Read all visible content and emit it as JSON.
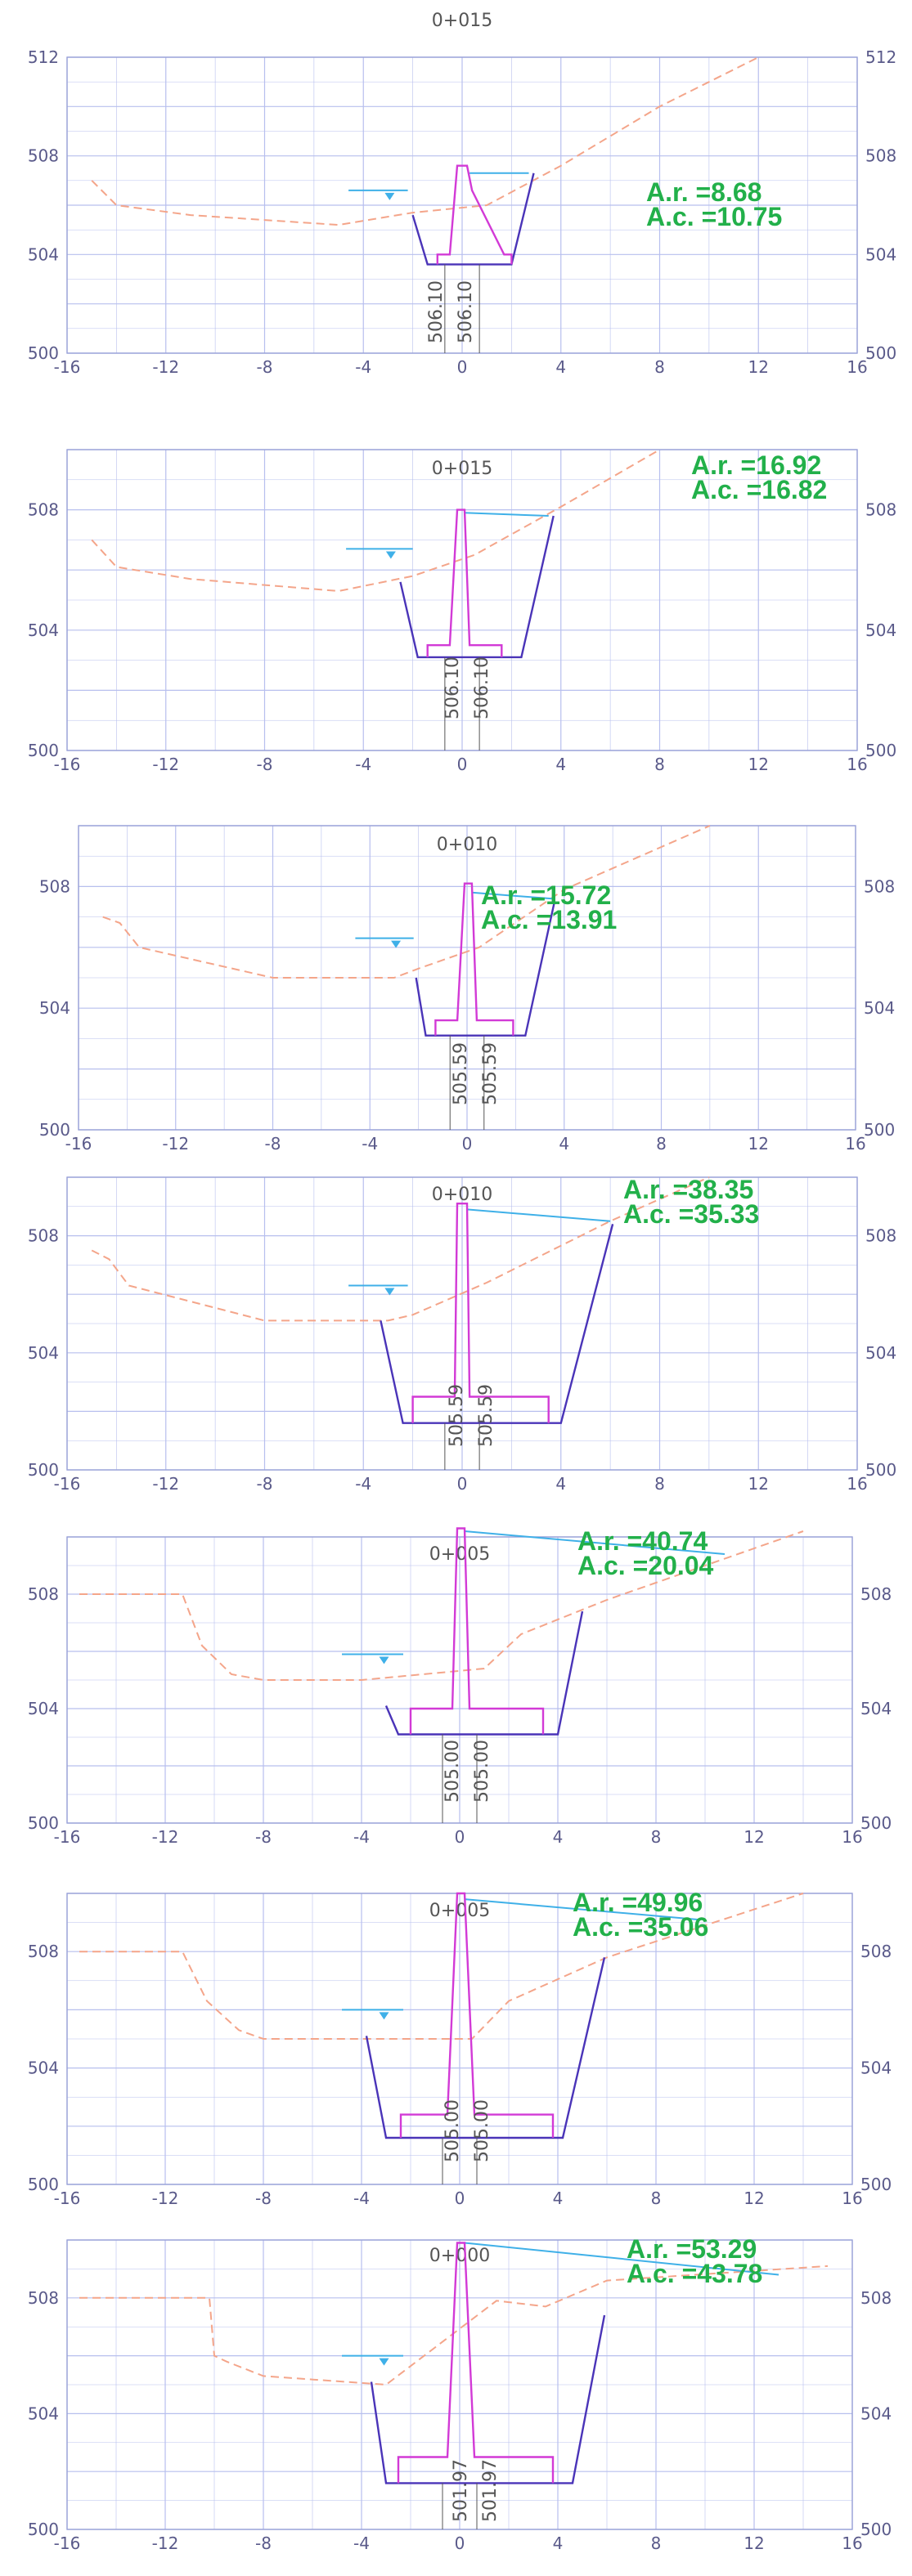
{
  "colors": {
    "grid": "#b7bfee",
    "frame": "#9aa2d8",
    "terrain": "#f4a58a",
    "excavation": "#4a34b8",
    "structure": "#d23ad6",
    "water": "#3fb0e8",
    "area_text": "#22b04a",
    "text": "#555555"
  },
  "chart_data": [
    {
      "type": "cross-section",
      "title": "0+015",
      "area_r_label": "A.r. =8.68",
      "area_c_label": "A.c. =10.75",
      "elev_labels": [
        "506.10",
        "506.10"
      ],
      "xlim": [
        -16,
        16
      ],
      "ylim": [
        500,
        512
      ],
      "x_ticks": [
        -16,
        -12,
        -8,
        -4,
        0,
        4,
        8,
        12,
        16
      ],
      "y_ticks": [
        500,
        504,
        508,
        512
      ],
      "terrain": [
        [
          -15,
          507.0
        ],
        [
          -14,
          506.0
        ],
        [
          -11,
          505.6
        ],
        [
          -8,
          505.4
        ],
        [
          -5,
          505.2
        ],
        [
          -2,
          505.7
        ],
        [
          1,
          506.0
        ],
        [
          4,
          507.6
        ],
        [
          8,
          510.0
        ],
        [
          12,
          512.0
        ]
      ],
      "excavation": [
        [
          -2,
          505.6
        ],
        [
          -1.4,
          503.6
        ],
        [
          2,
          503.6
        ],
        [
          2.9,
          507.3
        ]
      ],
      "structure": [
        [
          -1,
          503.6
        ],
        [
          -1,
          504.0
        ],
        [
          -0.5,
          504.0
        ],
        [
          -0.2,
          507.6
        ],
        [
          0.2,
          507.6
        ],
        [
          0.4,
          506.6
        ],
        [
          1.7,
          504.0
        ],
        [
          2,
          504.0
        ],
        [
          2,
          503.6
        ]
      ],
      "water": [
        [
          -4.6,
          506.6
        ],
        [
          -2.2,
          506.6
        ]
      ],
      "slope_line": [
        [
          0.3,
          507.3
        ],
        [
          2.7,
          507.3
        ]
      ]
    },
    {
      "type": "cross-section",
      "title": "0+015",
      "area_r_label": "A.r. =16.92",
      "area_c_label": "A.c. =16.82",
      "elev_labels": [
        "506.10",
        "506.10"
      ],
      "xlim": [
        -16,
        16
      ],
      "ylim": [
        500,
        510
      ],
      "x_ticks": [
        -16,
        -12,
        -8,
        -4,
        0,
        4,
        8,
        12,
        16
      ],
      "y_ticks": [
        500,
        504,
        508
      ],
      "terrain": [
        [
          -15,
          507.0
        ],
        [
          -14,
          506.1
        ],
        [
          -11,
          505.7
        ],
        [
          -8,
          505.5
        ],
        [
          -5,
          505.3
        ],
        [
          -2,
          505.8
        ],
        [
          0.5,
          506.5
        ],
        [
          4,
          508.1
        ],
        [
          8,
          510.0
        ]
      ],
      "excavation": [
        [
          -2.5,
          505.6
        ],
        [
          -1.8,
          503.1
        ],
        [
          2.4,
          503.1
        ],
        [
          3.7,
          507.8
        ]
      ],
      "structure": [
        [
          -1.4,
          503.1
        ],
        [
          -1.4,
          503.5
        ],
        [
          -0.5,
          503.5
        ],
        [
          -0.2,
          508.0
        ],
        [
          0.1,
          508.0
        ],
        [
          0.3,
          503.5
        ],
        [
          1.6,
          503.5
        ],
        [
          1.6,
          503.1
        ]
      ],
      "water": [
        [
          -4.7,
          506.7
        ],
        [
          -2.0,
          506.7
        ]
      ],
      "slope_line": [
        [
          0.1,
          507.9
        ],
        [
          3.5,
          507.8
        ]
      ]
    },
    {
      "type": "cross-section",
      "title": "0+010",
      "area_r_label": "A.r. =15.72",
      "area_c_label": "A.c. =13.91",
      "elev_labels": [
        "505.59",
        "505.59"
      ],
      "xlim": [
        -16,
        16
      ],
      "ylim": [
        500,
        510
      ],
      "x_ticks": [
        -16,
        -12,
        -8,
        -4,
        0,
        4,
        8,
        12,
        16
      ],
      "y_ticks": [
        500,
        504,
        508
      ],
      "terrain": [
        [
          -15,
          507.0
        ],
        [
          -14.3,
          506.8
        ],
        [
          -13.5,
          506.0
        ],
        [
          -8,
          505.0
        ],
        [
          -3,
          505.0
        ],
        [
          -2,
          505.3
        ],
        [
          0.5,
          506.0
        ],
        [
          4,
          507.9
        ],
        [
          10,
          510.0
        ]
      ],
      "excavation": [
        [
          -2.1,
          505.0
        ],
        [
          -1.7,
          503.1
        ],
        [
          2.4,
          503.1
        ],
        [
          3.6,
          507.5
        ]
      ],
      "structure": [
        [
          -1.3,
          503.1
        ],
        [
          -1.3,
          503.6
        ],
        [
          -0.4,
          503.6
        ],
        [
          -0.1,
          508.1
        ],
        [
          0.2,
          508.1
        ],
        [
          0.4,
          503.6
        ],
        [
          1.9,
          503.6
        ],
        [
          1.9,
          503.1
        ]
      ],
      "water": [
        [
          -4.6,
          506.3
        ],
        [
          -2.2,
          506.3
        ]
      ],
      "slope_line": [
        [
          0.2,
          507.8
        ],
        [
          3.5,
          507.6
        ]
      ]
    },
    {
      "type": "cross-section",
      "title": "0+010",
      "area_r_label": "A.r. =38.35",
      "area_c_label": "A.c. =35.33",
      "elev_labels": [
        "505.59",
        "505.59"
      ],
      "xlim": [
        -16,
        16
      ],
      "ylim": [
        500,
        510
      ],
      "x_ticks": [
        -16,
        -12,
        -8,
        -4,
        0,
        4,
        8,
        12,
        16
      ],
      "y_ticks": [
        500,
        504,
        508
      ],
      "terrain": [
        [
          -15,
          507.5
        ],
        [
          -14.3,
          507.2
        ],
        [
          -13.5,
          506.3
        ],
        [
          -8,
          505.1
        ],
        [
          -3,
          505.1
        ],
        [
          -2,
          505.3
        ],
        [
          1,
          506.4
        ],
        [
          6,
          508.5
        ],
        [
          10,
          510.0
        ]
      ],
      "excavation": [
        [
          -3.3,
          505.1
        ],
        [
          -2.4,
          501.6
        ],
        [
          4.0,
          501.6
        ],
        [
          6.1,
          508.4
        ]
      ],
      "structure": [
        [
          -2.0,
          501.6
        ],
        [
          -2.0,
          502.5
        ],
        [
          -0.3,
          502.5
        ],
        [
          -0.2,
          509.1
        ],
        [
          0.2,
          509.1
        ],
        [
          0.3,
          502.5
        ],
        [
          3.5,
          502.5
        ],
        [
          3.5,
          501.6
        ]
      ],
      "water": [
        [
          -4.6,
          506.3
        ],
        [
          -2.2,
          506.3
        ]
      ],
      "slope_line": [
        [
          0.2,
          508.9
        ],
        [
          6.0,
          508.5
        ]
      ]
    },
    {
      "type": "cross-section",
      "title": "0+005",
      "area_r_label": "A.r. =40.74",
      "area_c_label": "A.c. =20.04",
      "elev_labels": [
        "505.00",
        "505.00"
      ],
      "xlim": [
        -16,
        16
      ],
      "ylim": [
        500,
        510
      ],
      "x_ticks": [
        -16,
        -12,
        -8,
        -4,
        0,
        4,
        8,
        12,
        16
      ],
      "y_ticks": [
        500,
        504,
        508
      ],
      "terrain": [
        [
          -15.5,
          508.0
        ],
        [
          -11.3,
          508.0
        ],
        [
          -10.5,
          506.2
        ],
        [
          -9.3,
          505.2
        ],
        [
          -8,
          505.0
        ],
        [
          -4,
          505.0
        ],
        [
          1,
          505.4
        ],
        [
          2.5,
          506.6
        ],
        [
          6,
          507.8
        ],
        [
          14,
          510.2
        ]
      ],
      "excavation": [
        [
          -3,
          504.1
        ],
        [
          -2.5,
          503.1
        ],
        [
          4.0,
          503.1
        ],
        [
          5.0,
          507.4
        ]
      ],
      "structure": [
        [
          -2.0,
          503.1
        ],
        [
          -2.0,
          504.0
        ],
        [
          -0.3,
          504.0
        ],
        [
          -0.1,
          510.3
        ],
        [
          0.2,
          510.3
        ],
        [
          0.4,
          504.0
        ],
        [
          3.4,
          504.0
        ],
        [
          3.4,
          503.1
        ]
      ],
      "water": [
        [
          -4.8,
          505.9
        ],
        [
          -2.3,
          505.9
        ]
      ],
      "slope_line": [
        [
          0.2,
          510.2
        ],
        [
          10.8,
          509.4
        ]
      ]
    },
    {
      "type": "cross-section",
      "title": "0+005",
      "area_r_label": "A.r. =49.96",
      "area_c_label": "A.c. =35.06",
      "elev_labels": [
        "505.00",
        "505.00"
      ],
      "xlim": [
        -16,
        16
      ],
      "ylim": [
        500,
        510
      ],
      "x_ticks": [
        -16,
        -12,
        -8,
        -4,
        0,
        4,
        8,
        12,
        16
      ],
      "y_ticks": [
        500,
        504,
        508
      ],
      "terrain": [
        [
          -15.5,
          508.0
        ],
        [
          -11.3,
          508.0
        ],
        [
          -10.3,
          506.3
        ],
        [
          -9.0,
          505.3
        ],
        [
          -8,
          505.0
        ],
        [
          0.5,
          505.0
        ],
        [
          2.0,
          506.3
        ],
        [
          6,
          507.8
        ],
        [
          14,
          510.0
        ]
      ],
      "excavation": [
        [
          -3.8,
          505.1
        ],
        [
          -3.0,
          501.6
        ],
        [
          4.2,
          501.6
        ],
        [
          5.9,
          507.8
        ]
      ],
      "structure": [
        [
          -2.4,
          501.6
        ],
        [
          -2.4,
          502.4
        ],
        [
          -0.5,
          502.4
        ],
        [
          -0.1,
          510.0
        ],
        [
          0.2,
          510.0
        ],
        [
          0.6,
          502.4
        ],
        [
          3.8,
          502.4
        ],
        [
          3.8,
          501.6
        ]
      ],
      "water": [
        [
          -4.8,
          506.0
        ],
        [
          -2.3,
          506.0
        ]
      ],
      "slope_line": [
        [
          0.2,
          509.8
        ],
        [
          9.7,
          509.1
        ]
      ]
    },
    {
      "type": "cross-section",
      "title": "0+000",
      "area_r_label": "A.r. =53.29",
      "area_c_label": "A.c. =43.78",
      "elev_labels": [
        "501.97",
        "501.97"
      ],
      "xlim": [
        -16,
        16
      ],
      "ylim": [
        500,
        510
      ],
      "x_ticks": [
        -16,
        -12,
        -8,
        -4,
        0,
        4,
        8,
        12,
        16
      ],
      "y_ticks": [
        500,
        504,
        508
      ],
      "terrain": [
        [
          -15.5,
          508.0
        ],
        [
          -10.2,
          508.0
        ],
        [
          -10.0,
          506.0
        ],
        [
          -9.5,
          505.8
        ],
        [
          -8,
          505.3
        ],
        [
          -3,
          505.0
        ],
        [
          1.5,
          507.9
        ],
        [
          3.5,
          507.7
        ],
        [
          6,
          508.6
        ],
        [
          15,
          509.1
        ]
      ],
      "excavation": [
        [
          -3.6,
          505.1
        ],
        [
          -3.0,
          501.6
        ],
        [
          4.6,
          501.6
        ],
        [
          5.9,
          507.4
        ]
      ],
      "structure": [
        [
          -2.5,
          501.6
        ],
        [
          -2.5,
          502.5
        ],
        [
          -0.5,
          502.5
        ],
        [
          -0.1,
          509.9
        ],
        [
          0.2,
          509.9
        ],
        [
          0.6,
          502.5
        ],
        [
          3.8,
          502.5
        ],
        [
          3.8,
          501.6
        ]
      ],
      "water": [
        [
          -4.8,
          506.0
        ],
        [
          -2.3,
          506.0
        ]
      ],
      "slope_line": [
        [
          0.2,
          509.9
        ],
        [
          13.0,
          508.8
        ]
      ]
    }
  ]
}
